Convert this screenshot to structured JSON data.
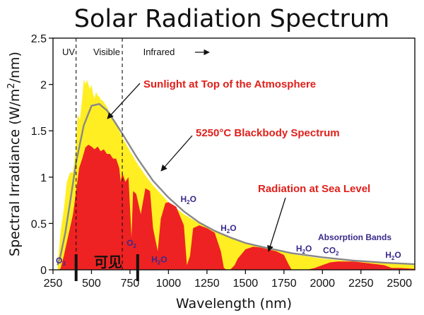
{
  "chart_data": {
    "type": "area",
    "title": "Solar Radiation Spectrum",
    "xlabel": "Wavelength (nm)",
    "ylabel": "Spectral Irradiance (W/m²/nm)",
    "xlim": [
      250,
      2600
    ],
    "ylim": [
      0,
      2.5
    ],
    "x_ticks": [
      250,
      500,
      750,
      1000,
      1250,
      1500,
      1750,
      2000,
      2250,
      2500
    ],
    "y_ticks": [
      0,
      0.5,
      1,
      1.5,
      2,
      2.5
    ],
    "y_tick_labels": [
      "0",
      "0.5",
      "1",
      "1.5",
      "2",
      "2.5"
    ],
    "grid": false,
    "regions": [
      {
        "label": "UV",
        "x_from": 250,
        "x_to": 400
      },
      {
        "label": "Visible",
        "x_from": 400,
        "x_to": 700
      },
      {
        "label": "Infrared",
        "x_from": 700,
        "x_to": 2600
      }
    ],
    "region_dividers": [
      400,
      700
    ],
    "series": [
      {
        "name": "5250°C Blackbody Spectrum",
        "color": "#888888",
        "x": [
          280,
          300,
          330,
          360,
          400,
          450,
          500,
          550,
          600,
          650,
          700,
          800,
          900,
          1000,
          1100,
          1200,
          1300,
          1400,
          1500,
          1600,
          1800,
          2000,
          2200,
          2400,
          2600
        ],
        "y": [
          0.05,
          0.16,
          0.4,
          0.72,
          1.16,
          1.56,
          1.77,
          1.79,
          1.72,
          1.6,
          1.47,
          1.2,
          0.96,
          0.78,
          0.63,
          0.51,
          0.42,
          0.35,
          0.29,
          0.25,
          0.18,
          0.135,
          0.1,
          0.077,
          0.06
        ]
      },
      {
        "name": "Sunlight at Top of the Atmosphere",
        "color": "#ffee22",
        "x": [
          280,
          300,
          320,
          340,
          360,
          380,
          395,
          410,
          425,
          440,
          450,
          460,
          470,
          480,
          490,
          500,
          510,
          520,
          530,
          540,
          550,
          560,
          575,
          600,
          625,
          650,
          675,
          700,
          750,
          800,
          850,
          900,
          950,
          1000,
          1100,
          1200,
          1300,
          1400,
          1500,
          1600,
          1700,
          1800,
          2000,
          2200,
          2400,
          2600
        ],
        "y": [
          0.05,
          0.42,
          0.65,
          0.95,
          1.05,
          1.05,
          1.25,
          1.68,
          1.62,
          1.85,
          2.06,
          2.0,
          2.05,
          2.0,
          1.95,
          2.0,
          1.9,
          1.85,
          1.92,
          1.88,
          1.87,
          1.84,
          1.82,
          1.76,
          1.68,
          1.6,
          1.52,
          1.43,
          1.28,
          1.14,
          1.02,
          0.91,
          0.82,
          0.73,
          0.6,
          0.5,
          0.42,
          0.35,
          0.29,
          0.25,
          0.21,
          0.17,
          0.12,
          0.09,
          0.07,
          0.05
        ]
      },
      {
        "name": "Radiation at Sea Level",
        "color": "#ee2222",
        "x": [
          290,
          300,
          320,
          340,
          360,
          380,
          400,
          420,
          440,
          460,
          480,
          500,
          520,
          540,
          560,
          580,
          600,
          620,
          640,
          660,
          680,
          690,
          700,
          720,
          740,
          760,
          770,
          790,
          820,
          850,
          880,
          900,
          930,
          950,
          980,
          1000,
          1050,
          1100,
          1120,
          1140,
          1160,
          1200,
          1250,
          1300,
          1340,
          1360,
          1380,
          1400,
          1430,
          1450,
          1500,
          1550,
          1600,
          1650,
          1700,
          1750,
          1780,
          1800,
          1850,
          1900,
          1950,
          2000,
          2050,
          2100,
          2200,
          2300,
          2400,
          2450,
          2500,
          2600
        ],
        "y": [
          0.0,
          0.02,
          0.15,
          0.3,
          0.45,
          0.6,
          0.85,
          1.1,
          1.2,
          1.32,
          1.35,
          1.33,
          1.3,
          1.33,
          1.28,
          1.3,
          1.25,
          1.25,
          1.2,
          1.2,
          1.1,
          0.95,
          1.05,
          0.95,
          1.0,
          0.35,
          0.85,
          0.82,
          0.6,
          0.88,
          0.85,
          0.45,
          0.2,
          0.55,
          0.72,
          0.73,
          0.68,
          0.48,
          0.05,
          0.15,
          0.45,
          0.48,
          0.45,
          0.4,
          0.2,
          0.02,
          0.0,
          0.0,
          0.05,
          0.12,
          0.22,
          0.25,
          0.24,
          0.22,
          0.2,
          0.16,
          0.06,
          0.0,
          0.0,
          0.0,
          0.02,
          0.05,
          0.08,
          0.09,
          0.09,
          0.07,
          0.05,
          0.02,
          0.02,
          0.01
        ]
      }
    ],
    "annotations": [
      {
        "text": "Sunlight at Top of the Atmosphere",
        "color": "#e0201b"
      },
      {
        "text": "5250°C Blackbody Spectrum",
        "color": "#e0201b"
      },
      {
        "text": "Radiation at Sea Level",
        "color": "#e0201b"
      },
      {
        "text": "Absorption Bands",
        "color": "#3a2a8a"
      }
    ],
    "absorption_labels": [
      {
        "species": "O3",
        "base": "O",
        "sub": "3",
        "x": 300,
        "y": 0.07
      },
      {
        "species": "O2",
        "base": "O",
        "sub": "2",
        "x": 760,
        "y": 0.26
      },
      {
        "species": "H2O",
        "base": "H",
        "sub": "2",
        "tail": "O",
        "x": 940,
        "y": 0.08
      },
      {
        "species": "H2O",
        "base": "H",
        "sub": "2",
        "tail": "O",
        "x": 1130,
        "y": 0.73
      },
      {
        "species": "H2O",
        "base": "H",
        "sub": "2",
        "tail": "O",
        "x": 1390,
        "y": 0.42
      },
      {
        "species": "H2O",
        "base": "H",
        "sub": "2",
        "tail": "O",
        "x": 1880,
        "y": 0.2
      },
      {
        "species": "CO2",
        "base": "CO",
        "sub": "2",
        "x": 2055,
        "y": 0.18
      },
      {
        "species": "H2O",
        "base": "H",
        "sub": "2",
        "tail": "O",
        "x": 2460,
        "y": 0.13
      }
    ],
    "marker_text": "可见",
    "marker_lines": [
      400,
      800
    ]
  }
}
